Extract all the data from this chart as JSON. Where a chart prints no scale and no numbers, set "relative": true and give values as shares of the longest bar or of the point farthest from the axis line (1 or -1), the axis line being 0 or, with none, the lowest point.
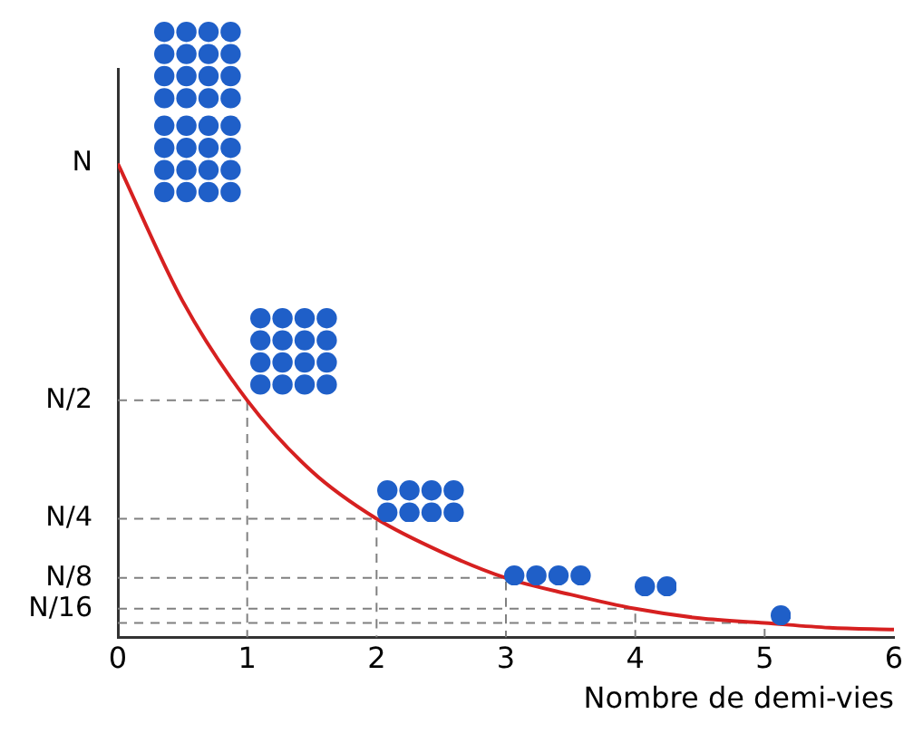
{
  "chart_data": {
    "type": "line",
    "xlabel": "Nombre de demi-vies",
    "xlim": [
      0,
      6
    ],
    "xticks": [
      0,
      1,
      2,
      3,
      4,
      5,
      6
    ],
    "relative": true,
    "annotations": [
      "N",
      "N/2",
      "N/4",
      "N/8",
      "N/16"
    ],
    "grid": false,
    "legend": false,
    "marker": "none",
    "series": [
      {
        "color": "#d62020",
        "line_style": "solid",
        "x": [
          0,
          0.5,
          1,
          1.5,
          2,
          2.5,
          3,
          3.5,
          4,
          4.5,
          5,
          5.5,
          6
        ],
        "values": [
          1,
          0.71,
          0.5,
          0.35,
          0.25,
          0.18,
          0.125,
          0.09,
          0.06,
          0.04,
          0.03,
          0.02,
          0.016
        ]
      },
      {
        "color": "#808080",
        "line_style": "dashed",
        "x": [
          0,
          1,
          1
        ],
        "values": [
          0.5,
          0.5,
          0
        ]
      },
      {
        "color": "#808080",
        "line_style": "dashed",
        "x": [
          0,
          2,
          2
        ],
        "values": [
          0.25,
          0.25,
          0
        ]
      },
      {
        "color": "#808080",
        "line_style": "dashed",
        "x": [
          0,
          3,
          3
        ],
        "values": [
          0.125,
          0.125,
          0
        ]
      },
      {
        "color": "#808080",
        "line_style": "dashed",
        "x": [
          0,
          4,
          4
        ],
        "values": [
          0.06,
          0.06,
          0
        ]
      },
      {
        "color": "#808080",
        "line_style": "dashed",
        "x": [
          0,
          5,
          5
        ],
        "values": [
          0.03,
          0.03,
          0
        ]
      }
    ]
  }
}
